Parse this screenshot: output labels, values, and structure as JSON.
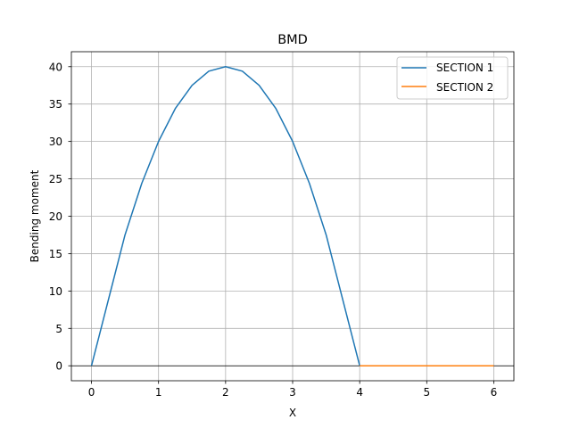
{
  "chart_data": {
    "type": "line",
    "title": "BMD",
    "xlabel": "X",
    "ylabel": "Bending moment",
    "xlim": [
      -0.3,
      6.3
    ],
    "ylim": [
      -2,
      42
    ],
    "x_ticks": [
      0,
      1,
      2,
      3,
      4,
      5,
      6
    ],
    "y_ticks": [
      0,
      5,
      10,
      15,
      20,
      25,
      30,
      35,
      40
    ],
    "grid": true,
    "zero_line": true,
    "legend_position": "top-right",
    "series": [
      {
        "name": "SECTION 1",
        "color": "#1f77b4",
        "x": [
          0,
          0.25,
          0.5,
          0.75,
          1,
          1.25,
          1.5,
          1.75,
          2,
          2.25,
          2.5,
          2.75,
          3,
          3.25,
          3.5,
          3.75,
          4
        ],
        "y": [
          0,
          8.75,
          17.5,
          24.4,
          30,
          34.4,
          37.5,
          39.4,
          40,
          39.4,
          37.5,
          34.4,
          30,
          24.4,
          17.5,
          8.75,
          0
        ]
      },
      {
        "name": "SECTION 2",
        "color": "#ff7f0e",
        "x": [
          4,
          5,
          6
        ],
        "y": [
          0,
          0,
          0
        ]
      }
    ]
  }
}
